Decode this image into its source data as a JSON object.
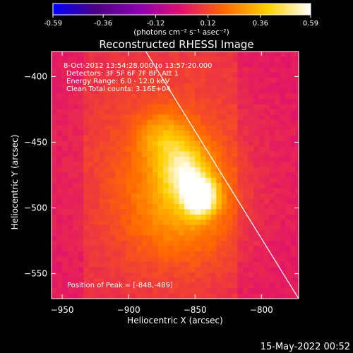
{
  "colorbar": {
    "ticks": [
      "-0.59",
      "-0.36",
      "-0.12",
      "0.12",
      "0.36",
      "0.59"
    ],
    "tick_values": [
      -0.59,
      -0.36,
      -0.12,
      0.12,
      0.36,
      0.59
    ],
    "unit_label": "(photons cm⁻² s⁻¹ asec⁻²)",
    "colors": [
      "#0000ff",
      "#4b0082",
      "#8b00b0",
      "#e0106e",
      "#ff6a00",
      "#ffd000",
      "#ffffff"
    ]
  },
  "chart_data": {
    "type": "heatmap",
    "title": "Reconstructed RHESSI Image",
    "xlabel": "Heliocentric X (arcsec)",
    "ylabel": "Heliocentric Y (arcsec)",
    "xlim": [
      -958,
      -772
    ],
    "ylim": [
      -569,
      -381
    ],
    "xticks": [
      -950,
      -900,
      -850,
      -800
    ],
    "xtick_labels": [
      "−950",
      "−900",
      "−850",
      "−800"
    ],
    "yticks": [
      -400,
      -450,
      -500,
      -550
    ],
    "ytick_labels": [
      "−400",
      "−450",
      "−500",
      "−550"
    ],
    "zlim": [
      -0.59,
      0.59
    ],
    "peak": {
      "x": -848,
      "y": -489
    },
    "limb_line": [
      [
        -887,
        -381
      ],
      [
        -772,
        -569
      ]
    ],
    "info_lines": [
      " 8-Oct-2012 13:54:28.000 to 13:57:20.000",
      "Detectors: 3F 5F 6F 7F 8F, Att 1",
      "Energy Range: 6.0 - 12.0 keV",
      "Clean     Total counts: 3.16E+04"
    ],
    "peak_label": "Position of Peak = [-848,-489]"
  },
  "footer": {
    "date": "15-May-2022 00:52"
  }
}
